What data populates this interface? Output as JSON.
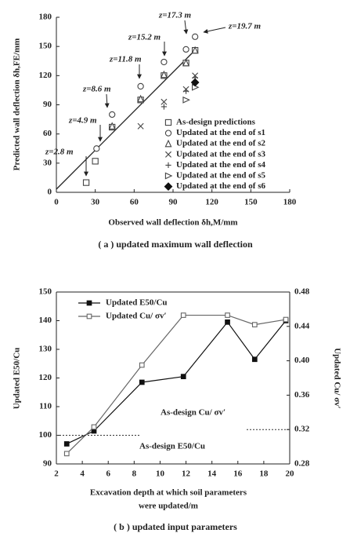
{
  "chart_data": [
    {
      "type": "scatter",
      "xlabel": "Observed wall deflection δh,M/mm",
      "ylabel": "Predicted wall deflection δh,FE/mm",
      "caption": "( a ) updated maximum wall deflection",
      "xlim": [
        0,
        180
      ],
      "xticks": [
        0,
        30,
        60,
        90,
        120,
        150,
        180
      ],
      "ylim": [
        0,
        180
      ],
      "yticks": [
        0,
        30,
        60,
        90,
        120,
        150,
        180
      ],
      "legend": "lower right",
      "annotations": [
        "z=2.8 m",
        "z=4.9 m",
        "z=8.6 m",
        "z=11.8 m",
        "z=15.2 m",
        "z=17.3 m",
        "z=19.7 m"
      ],
      "series": [
        {
          "name": "As-design predictions",
          "marker": "square",
          "filled": false,
          "color": "#444",
          "x": [
            23,
            30,
            43,
            65,
            83,
            100,
            107
          ],
          "values": [
            10,
            32,
            67,
            95,
            120,
            133,
            146
          ]
        },
        {
          "name": "Updated at the end of s1",
          "marker": "circle",
          "filled": false,
          "color": "#444",
          "x": [
            31,
            43,
            65,
            83,
            100,
            107
          ],
          "values": [
            45,
            80,
            109,
            134,
            147,
            160
          ]
        },
        {
          "name": "Updated at the end of s2",
          "marker": "triangle",
          "filled": false,
          "color": "#444",
          "x": [
            43,
            65,
            83,
            100,
            107
          ],
          "values": [
            68,
            96,
            121,
            133,
            146
          ]
        },
        {
          "name": "Updated at the end of s3",
          "marker": "x",
          "filled": false,
          "color": "#444",
          "x": [
            65,
            83,
            100,
            107
          ],
          "values": [
            68,
            93,
            106,
            120
          ]
        },
        {
          "name": "Updated at the end of s4",
          "marker": "plus",
          "filled": false,
          "color": "#444",
          "x": [
            83,
            100,
            107
          ],
          "values": [
            88,
            104,
            118
          ]
        },
        {
          "name": "Updated at the end of s5",
          "marker": "triangle-right",
          "filled": false,
          "color": "#444",
          "x": [
            100,
            107
          ],
          "values": [
            95,
            108
          ]
        },
        {
          "name": "Updated at the end of s6",
          "marker": "diamond",
          "filled": true,
          "color": "#111",
          "x": [
            107
          ],
          "values": [
            113
          ]
        }
      ]
    },
    {
      "type": "line",
      "xlabel": [
        "Excavation depth at which soil parameters",
        "were updated/m"
      ],
      "ylabel": "Updated E50/Cu",
      "y2label": "Updated Cu/ σv′",
      "caption": "( b ) updated input parameters",
      "x": [
        2.8,
        4.9,
        8.6,
        11.8,
        15.2,
        17.3,
        19.7
      ],
      "xlim": [
        2,
        20
      ],
      "xticks": [
        2,
        4,
        6,
        8,
        10,
        12,
        14,
        16,
        18,
        20
      ],
      "ylim": [
        90,
        150
      ],
      "yticks": [
        90,
        100,
        110,
        120,
        130,
        140,
        150
      ],
      "y2lim": [
        0.28,
        0.48
      ],
      "y2ticks": [
        0.28,
        0.32,
        0.36,
        {
          "value": 0.4,
          "label": "0.40"
        },
        0.44,
        0.48
      ],
      "legend": "upper left",
      "series": [
        {
          "name": "Updated E50/Cu",
          "marker": "square",
          "filled": true,
          "color": "#111",
          "values": [
            97,
            101.5,
            118.5,
            120.5,
            139.5,
            126.5,
            140
          ]
        },
        {
          "name": "Updated Cu/ σv′",
          "marker": "square",
          "filled": false,
          "color": "#666",
          "axis": "y2",
          "values": [
            0.292,
            0.323,
            0.395,
            0.453,
            0.453,
            0.442,
            0.448
          ]
        }
      ],
      "reference_lines": [
        {
          "label": "As-design E50/Cu",
          "value": 100,
          "axis": "y"
        },
        {
          "label": "As-design Cu/ σv′",
          "value": 0.32,
          "axis": "y2"
        }
      ]
    }
  ]
}
